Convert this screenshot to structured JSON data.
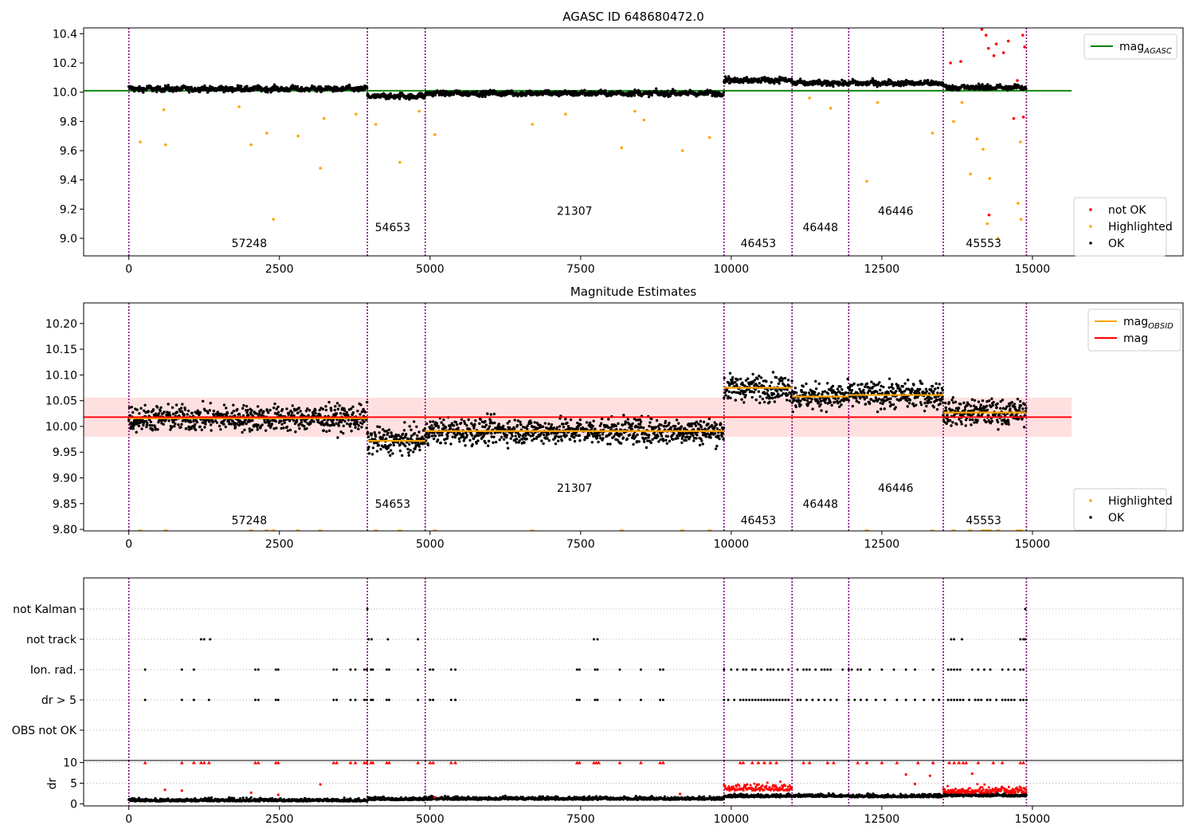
{
  "chart_data": [
    {
      "type": "scatter",
      "title": "AGASC ID 648680472.0",
      "xlim": [
        -750,
        17500
      ],
      "ylim": [
        8.88,
        10.44
      ],
      "x_ticks": [
        0,
        2500,
        5000,
        7500,
        10000,
        12500,
        15000
      ],
      "x_tick_labels": [
        "0",
        "2500",
        "5000",
        "7500",
        "10000",
        "12500",
        "15000"
      ],
      "y_ticks": [
        9.0,
        9.2,
        9.4,
        9.6,
        9.8,
        10.0,
        10.2,
        10.4
      ],
      "y_tick_labels": [
        "9.0",
        "9.2",
        "9.4",
        "9.6",
        "9.8",
        "10.0",
        "10.2",
        "10.4"
      ],
      "mag_agasc": 10.01,
      "mag_agasc_xrange": [
        -750,
        15650
      ],
      "boundaries": [
        0,
        3960,
        4920,
        9880,
        11010,
        11950,
        13520,
        14900
      ],
      "segments": [
        {
          "x0": 0,
          "x1": 3960,
          "mean": 10.02,
          "label": "57248"
        },
        {
          "x0": 3960,
          "x1": 4920,
          "mean": 9.97,
          "label": "54653"
        },
        {
          "x0": 4920,
          "x1": 9880,
          "mean": 9.99,
          "label": "21307"
        },
        {
          "x0": 9880,
          "x1": 11010,
          "mean": 10.08,
          "label": "46453"
        },
        {
          "x0": 11010,
          "x1": 11950,
          "mean": 10.06,
          "label": "46448"
        },
        {
          "x0": 11950,
          "x1": 13520,
          "mean": 10.06,
          "label": "46446"
        },
        {
          "x0": 13520,
          "x1": 14900,
          "mean": 10.03,
          "label": "45553"
        }
      ],
      "obsid_labels": [
        {
          "x": 2000,
          "y": 8.94,
          "text": "57248"
        },
        {
          "x": 4380,
          "y": 9.05,
          "text": "54653"
        },
        {
          "x": 7400,
          "y": 9.16,
          "text": "21307"
        },
        {
          "x": 10450,
          "y": 8.94,
          "text": "46453"
        },
        {
          "x": 11480,
          "y": 9.05,
          "text": "46448"
        },
        {
          "x": 12730,
          "y": 9.16,
          "text": "46446"
        },
        {
          "x": 14190,
          "y": 8.94,
          "text": "45553"
        }
      ],
      "highlighted_outliers": [
        {
          "x": 190,
          "y": 9.66
        },
        {
          "x": 580,
          "y": 9.88
        },
        {
          "x": 610,
          "y": 9.64
        },
        {
          "x": 1830,
          "y": 9.9
        },
        {
          "x": 2030,
          "y": 9.64
        },
        {
          "x": 2290,
          "y": 9.72
        },
        {
          "x": 2400,
          "y": 9.13
        },
        {
          "x": 2810,
          "y": 9.7
        },
        {
          "x": 3180,
          "y": 9.48
        },
        {
          "x": 3240,
          "y": 9.82
        },
        {
          "x": 3770,
          "y": 9.85
        },
        {
          "x": 4100,
          "y": 9.78
        },
        {
          "x": 4500,
          "y": 9.52
        },
        {
          "x": 4820,
          "y": 9.87
        },
        {
          "x": 5080,
          "y": 9.71
        },
        {
          "x": 6700,
          "y": 9.78
        },
        {
          "x": 7250,
          "y": 9.85
        },
        {
          "x": 8180,
          "y": 9.62
        },
        {
          "x": 8400,
          "y": 9.87
        },
        {
          "x": 8550,
          "y": 9.81
        },
        {
          "x": 9190,
          "y": 9.6
        },
        {
          "x": 9640,
          "y": 9.69
        },
        {
          "x": 11300,
          "y": 9.96
        },
        {
          "x": 11650,
          "y": 9.89
        },
        {
          "x": 12250,
          "y": 9.39
        },
        {
          "x": 12430,
          "y": 9.93
        },
        {
          "x": 13340,
          "y": 9.72
        },
        {
          "x": 13690,
          "y": 9.8
        },
        {
          "x": 13830,
          "y": 9.93
        },
        {
          "x": 13970,
          "y": 9.44
        },
        {
          "x": 14080,
          "y": 9.68
        },
        {
          "x": 14180,
          "y": 9.61
        },
        {
          "x": 14250,
          "y": 9.1
        },
        {
          "x": 14290,
          "y": 9.41
        },
        {
          "x": 14430,
          "y": 9.0
        },
        {
          "x": 14760,
          "y": 9.24
        },
        {
          "x": 14810,
          "y": 9.13
        },
        {
          "x": 14800,
          "y": 9.66
        }
      ],
      "notok_outliers": [
        {
          "x": 13810,
          "y": 10.21
        },
        {
          "x": 14160,
          "y": 10.43
        },
        {
          "x": 14230,
          "y": 10.39
        },
        {
          "x": 14270,
          "y": 10.3
        },
        {
          "x": 14400,
          "y": 10.33
        },
        {
          "x": 14520,
          "y": 10.27
        },
        {
          "x": 14600,
          "y": 10.35
        },
        {
          "x": 14690,
          "y": 9.82
        },
        {
          "x": 14280,
          "y": 9.16
        },
        {
          "x": 14750,
          "y": 10.08
        },
        {
          "x": 14840,
          "y": 10.39
        },
        {
          "x": 14870,
          "y": 10.31
        },
        {
          "x": 14850,
          "y": 9.83
        },
        {
          "x": 13640,
          "y": 10.2
        },
        {
          "x": 14360,
          "y": 10.25
        }
      ],
      "legend_upper": {
        "location": "upper-right",
        "entries": [
          {
            "label": "mag",
            "sub": "AGASC",
            "color": "#008000"
          }
        ]
      },
      "legend_lower": {
        "location": "lower-right",
        "entries": [
          {
            "label": "not OK",
            "color": "#ff0000"
          },
          {
            "label": "Highlighted",
            "color": "#ffa500"
          },
          {
            "label": "OK",
            "color": "#000000"
          }
        ]
      }
    },
    {
      "type": "scatter",
      "title": "Magnitude Estimates",
      "xlim": [
        -750,
        17500
      ],
      "ylim": [
        9.797,
        10.24
      ],
      "x_ticks": [
        0,
        2500,
        5000,
        7500,
        10000,
        12500,
        15000
      ],
      "x_tick_labels": [
        "0",
        "2500",
        "5000",
        "7500",
        "10000",
        "12500",
        "15000"
      ],
      "y_ticks": [
        9.8,
        9.85,
        9.9,
        9.95,
        10.0,
        10.05,
        10.1,
        10.15,
        10.2
      ],
      "y_tick_labels": [
        "9.80",
        "9.85",
        "9.90",
        "9.95",
        "10.00",
        "10.05",
        "10.10",
        "10.15",
        "10.20"
      ],
      "mag": 10.018,
      "mag_band": [
        9.98,
        10.056
      ],
      "mag_xrange": [
        -750,
        15650
      ],
      "mag_obsid": [
        {
          "x0": 0,
          "x1": 3960,
          "value": 10.016
        },
        {
          "x0": 3960,
          "x1": 4920,
          "value": 9.972
        },
        {
          "x0": 4920,
          "x1": 9880,
          "value": 9.991
        },
        {
          "x0": 9880,
          "x1": 11010,
          "value": 10.075
        },
        {
          "x0": 11010,
          "x1": 11950,
          "value": 10.058
        },
        {
          "x0": 11950,
          "x1": 13520,
          "value": 10.061
        },
        {
          "x0": 13520,
          "x1": 14900,
          "value": 10.027
        }
      ],
      "obsid_labels": [
        {
          "x": 2000,
          "y": 9.81,
          "text": "57248"
        },
        {
          "x": 4380,
          "y": 9.842,
          "text": "54653"
        },
        {
          "x": 7400,
          "y": 9.873,
          "text": "21307"
        },
        {
          "x": 10450,
          "y": 9.81,
          "text": "46453"
        },
        {
          "x": 11480,
          "y": 9.842,
          "text": "46448"
        },
        {
          "x": 12730,
          "y": 9.873,
          "text": "46446"
        },
        {
          "x": 14190,
          "y": 9.81,
          "text": "45553"
        }
      ],
      "clipped_markers_x": [
        190,
        610,
        2030,
        2290,
        2400,
        2810,
        3180,
        4100,
        4500,
        5080,
        6700,
        8180,
        9190,
        9640,
        12250,
        13340,
        13690,
        13970,
        14180,
        14250,
        14290,
        14430,
        14760,
        14810
      ],
      "legend_upper": {
        "location": "upper-right",
        "entries": [
          {
            "label": "mag",
            "sub": "OBSID",
            "color": "#ffa500"
          },
          {
            "label": "mag",
            "color": "#ff0000"
          }
        ]
      },
      "legend_lower": {
        "location": "lower-right",
        "entries": [
          {
            "label": "Highlighted",
            "color": "#ffa500"
          },
          {
            "label": "OK",
            "color": "#000000"
          }
        ]
      }
    },
    {
      "type": "scatter",
      "xlim": [
        -750,
        17500
      ],
      "flag_rows": [
        "not Kalman",
        "not track",
        "Ion. rad.",
        "dr > 5",
        "OBS not OK"
      ],
      "flag_points": {
        "not Kalman": [
          3960,
          14880
        ],
        "not track": [
          1200,
          1250,
          1350,
          3980,
          4030,
          4300,
          4800,
          7720,
          7780,
          13650,
          13700,
          13830,
          14800,
          14850,
          14880
        ],
        "Ion. rad.": [
          270,
          880,
          1080,
          2100,
          2150,
          2440,
          2480,
          3400,
          3450,
          3680,
          3760,
          3910,
          3950,
          4020,
          4050,
          4280,
          4320,
          4800,
          5000,
          5050,
          5350,
          5420,
          7440,
          7480,
          7740,
          7780,
          8150,
          8500,
          8820,
          8870,
          9880,
          10000,
          10100,
          10200,
          10250,
          10350,
          10400,
          10500,
          10600,
          10650,
          10700,
          10780,
          10850,
          10950,
          11100,
          11200,
          11250,
          11300,
          11400,
          11500,
          11550,
          11600,
          11650,
          11850,
          11950,
          12000,
          12100,
          12150,
          12300,
          12500,
          12700,
          12900,
          13050,
          13350,
          13600,
          13650,
          13700,
          13750,
          13800,
          14000,
          14100,
          14200,
          14300,
          14500,
          14600,
          14700,
          14800,
          14850
        ],
        "dr > 5": [
          270,
          880,
          1080,
          1330,
          2100,
          2150,
          2440,
          2480,
          3400,
          3450,
          3680,
          3760,
          3910,
          3950,
          4020,
          4050,
          4280,
          4320,
          4800,
          5000,
          5050,
          5350,
          5420,
          7440,
          7480,
          7740,
          7780,
          8150,
          8500,
          8820,
          8870,
          9880,
          9950,
          10050,
          10150,
          10200,
          10250,
          10300,
          10350,
          10400,
          10450,
          10500,
          10550,
          10600,
          10650,
          10700,
          10750,
          10800,
          10850,
          10900,
          10950,
          11100,
          11150,
          11250,
          11350,
          11450,
          11550,
          11650,
          11750,
          11950,
          12050,
          12150,
          12250,
          12400,
          12550,
          12750,
          12900,
          13050,
          13200,
          13350,
          13450,
          13600,
          13650,
          13700,
          13750,
          13800,
          13850,
          13950,
          14050,
          14100,
          14150,
          14250,
          14300,
          14400,
          14500,
          14550,
          14600,
          14650,
          14700,
          14800,
          14850,
          14900
        ]
      }
    },
    {
      "type": "scatter",
      "ylabel": "dr",
      "xlim": [
        -750,
        17500
      ],
      "ylim": [
        -0.5,
        10.5
      ],
      "x_ticks": [
        0,
        2500,
        5000,
        7500,
        10000,
        12500,
        15000
      ],
      "x_tick_labels": [
        "0",
        "2500",
        "5000",
        "7500",
        "10000",
        "12500",
        "15000"
      ],
      "y_ticks": [
        0,
        5,
        10
      ],
      "y_tick_labels": [
        "0",
        "5",
        "10"
      ],
      "clipped_x": [
        270,
        880,
        1080,
        1200,
        1250,
        1330,
        2100,
        2150,
        2440,
        2480,
        3400,
        3450,
        3680,
        3760,
        3910,
        3950,
        4020,
        4050,
        4280,
        4320,
        4800,
        5000,
        5050,
        5350,
        5420,
        7440,
        7480,
        7720,
        7760,
        7800,
        8150,
        8500,
        8820,
        8870,
        10150,
        10200,
        10350,
        10450,
        10550,
        10650,
        10750,
        11200,
        11300,
        11600,
        11700,
        12100,
        12250,
        12500,
        12750,
        13100,
        13350,
        13620,
        13700,
        13780,
        13850,
        13900,
        14100,
        14350,
        14500,
        14800,
        14850
      ],
      "scattered_outliers": [
        {
          "x": 600,
          "y": 3.4
        },
        {
          "x": 880,
          "y": 3.2
        },
        {
          "x": 2030,
          "y": 2.7
        },
        {
          "x": 2480,
          "y": 2.2
        },
        {
          "x": 3180,
          "y": 4.7
        },
        {
          "x": 5080,
          "y": 1.6
        },
        {
          "x": 9150,
          "y": 2.4
        },
        {
          "x": 12900,
          "y": 7.1
        },
        {
          "x": 13050,
          "y": 4.8
        },
        {
          "x": 13300,
          "y": 6.8
        },
        {
          "x": 14000,
          "y": 7.3
        }
      ]
    }
  ]
}
